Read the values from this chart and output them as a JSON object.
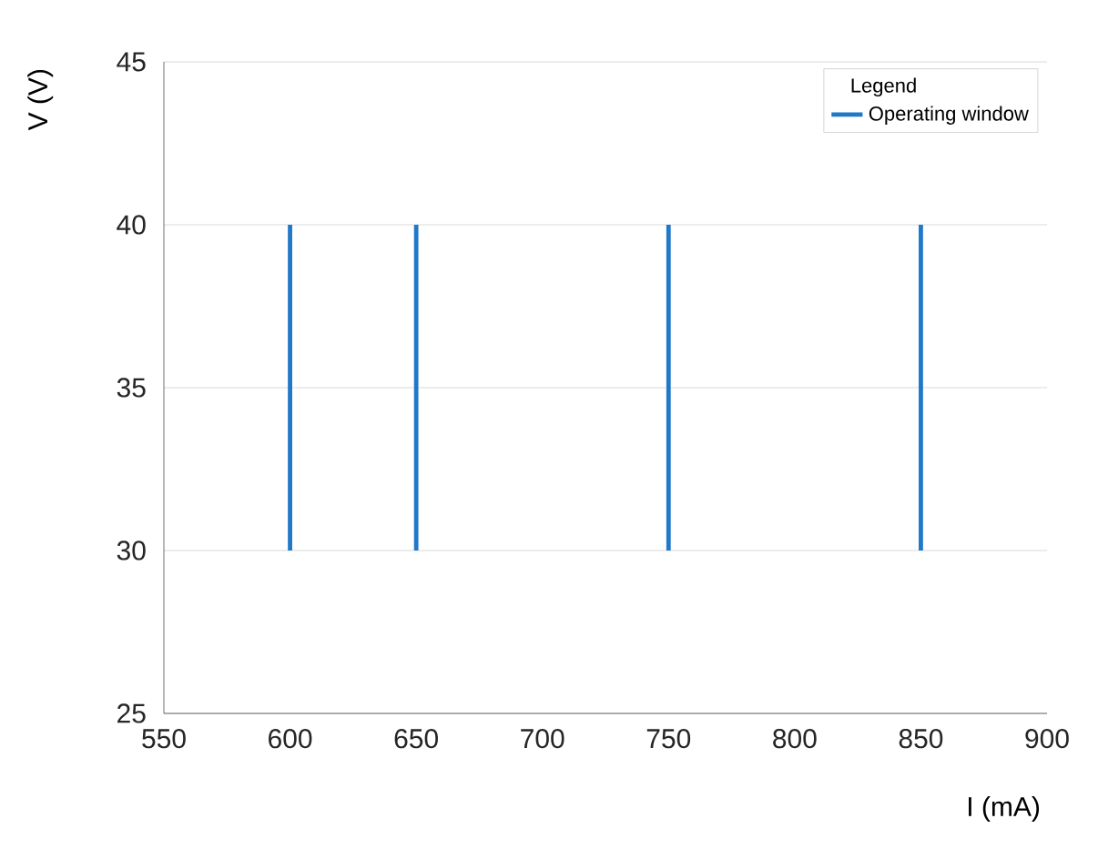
{
  "chart_data": {
    "type": "line",
    "xlabel": "I (mA)",
    "ylabel": "V (V)",
    "legend_title": "Legend",
    "series": [
      {
        "name": "Operating window",
        "color": "#1f78c8",
        "x": [
          600,
          600,
          null,
          650,
          650,
          null,
          750,
          750,
          null,
          850,
          850
        ],
        "values": [
          30,
          40,
          null,
          30,
          40,
          null,
          30,
          40,
          null,
          30,
          40
        ]
      }
    ],
    "xlim": [
      550,
      900
    ],
    "xticks": [
      550,
      600,
      650,
      700,
      750,
      800,
      850,
      900
    ],
    "ylim": [
      25,
      45
    ],
    "yticks": [
      25,
      30,
      35,
      40,
      45
    ],
    "grid": "y",
    "legend": "top right",
    "marker": "none",
    "line_style": "solid"
  }
}
